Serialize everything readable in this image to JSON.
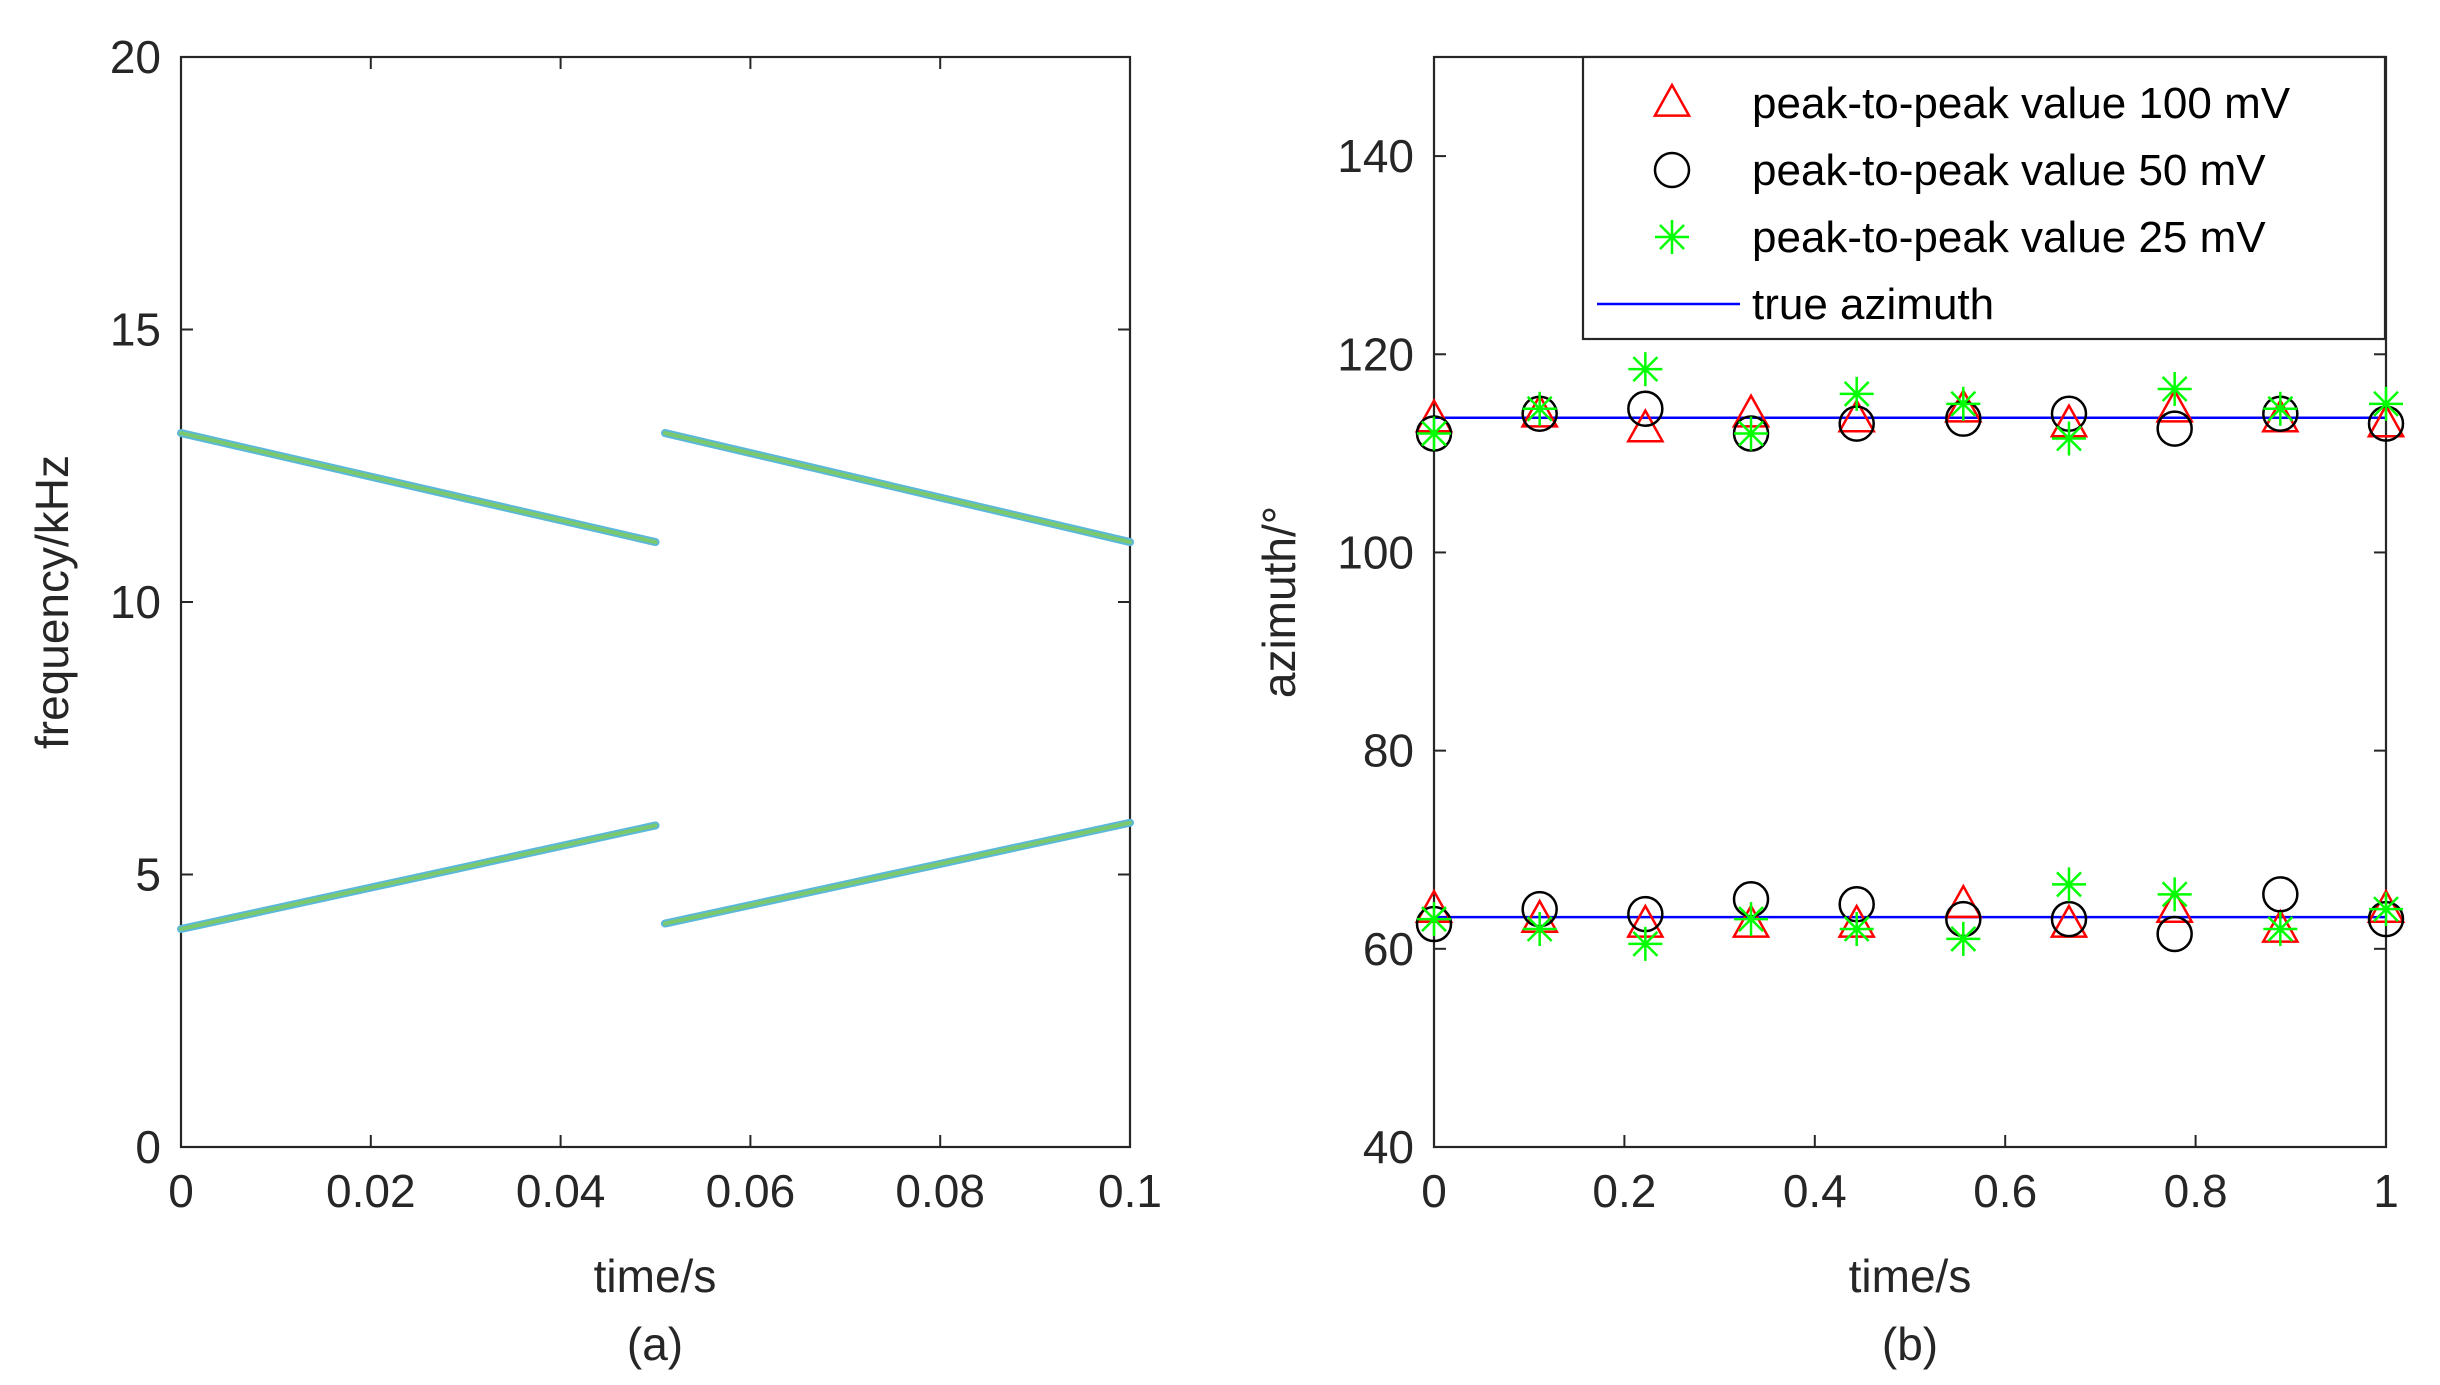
{
  "chart_data": [
    {
      "type": "line",
      "panel": "a",
      "caption": "(a)",
      "xlabel": "time/s",
      "ylabel": "frequency/kHz",
      "xlim": [
        0,
        0.1
      ],
      "ylim": [
        0,
        20
      ],
      "xticks": [
        0,
        0.02,
        0.04,
        0.06,
        0.08,
        0.1
      ],
      "xtick_labels": [
        "0",
        "0.02",
        "0.04",
        "0.06",
        "0.08",
        "0.1"
      ],
      "yticks": [
        0,
        5,
        10,
        15,
        20
      ],
      "ytick_labels": [
        "0",
        "5",
        "10",
        "15",
        "20"
      ],
      "color": "#7bc96f",
      "series": [
        {
          "name": "upper chirp 1",
          "x": [
            0,
            0.05
          ],
          "y": [
            13.1,
            11.1
          ]
        },
        {
          "name": "upper chirp 2",
          "x": [
            0.051,
            0.1
          ],
          "y": [
            13.1,
            11.1
          ]
        },
        {
          "name": "lower chirp 1",
          "x": [
            0,
            0.05
          ],
          "y": [
            4.0,
            5.9
          ]
        },
        {
          "name": "lower chirp 2",
          "x": [
            0.051,
            0.1
          ],
          "y": [
            4.1,
            5.95
          ]
        }
      ]
    },
    {
      "type": "scatter",
      "panel": "b",
      "caption": "(b)",
      "xlabel": "time/s",
      "ylabel": "azimuth/°",
      "xlim": [
        0,
        1
      ],
      "ylim": [
        40,
        150
      ],
      "xticks": [
        0,
        0.2,
        0.4,
        0.6,
        0.8,
        1
      ],
      "xtick_labels": [
        "0",
        "0.2",
        "0.4",
        "0.6",
        "0.8",
        "1"
      ],
      "yticks": [
        40,
        60,
        80,
        100,
        120,
        140
      ],
      "ytick_labels": [
        "40",
        "60",
        "80",
        "100",
        "120",
        "140"
      ],
      "legend_position": "top-right",
      "x": [
        0,
        0.111,
        0.222,
        0.333,
        0.444,
        0.556,
        0.667,
        0.778,
        0.889,
        1.0
      ],
      "series": [
        {
          "name": "peak-to-peak value 100 mV",
          "marker": "triangle",
          "color": "#ff0000",
          "upper": [
            113.5,
            114,
            112.5,
            114,
            113.5,
            114.5,
            113,
            114.5,
            113.5,
            113
          ],
          "lower": [
            64,
            63,
            62.5,
            62.5,
            62.5,
            64.5,
            62.5,
            64,
            62,
            64
          ]
        },
        {
          "name": "peak-to-peak value 50 mV",
          "marker": "circle",
          "color": "#000000",
          "upper": [
            112,
            114,
            114.5,
            112,
            113,
            113.5,
            114,
            112.5,
            114,
            113
          ],
          "lower": [
            62.5,
            64,
            63.5,
            65,
            64.5,
            63,
            63,
            61.5,
            65.5,
            63
          ]
        },
        {
          "name": "peak-to-peak value 25 mV",
          "marker": "star",
          "color": "#00ff00",
          "upper": [
            112,
            114.5,
            118.5,
            112,
            116,
            115,
            111.5,
            116.5,
            114.5,
            115
          ],
          "lower": [
            63,
            62,
            60.5,
            63,
            62,
            61,
            66.5,
            65.5,
            62,
            64
          ]
        },
        {
          "name": "true azimuth",
          "marker": "line",
          "color": "#0000ff",
          "values": [
            113.6,
            63.2
          ]
        }
      ]
    }
  ]
}
